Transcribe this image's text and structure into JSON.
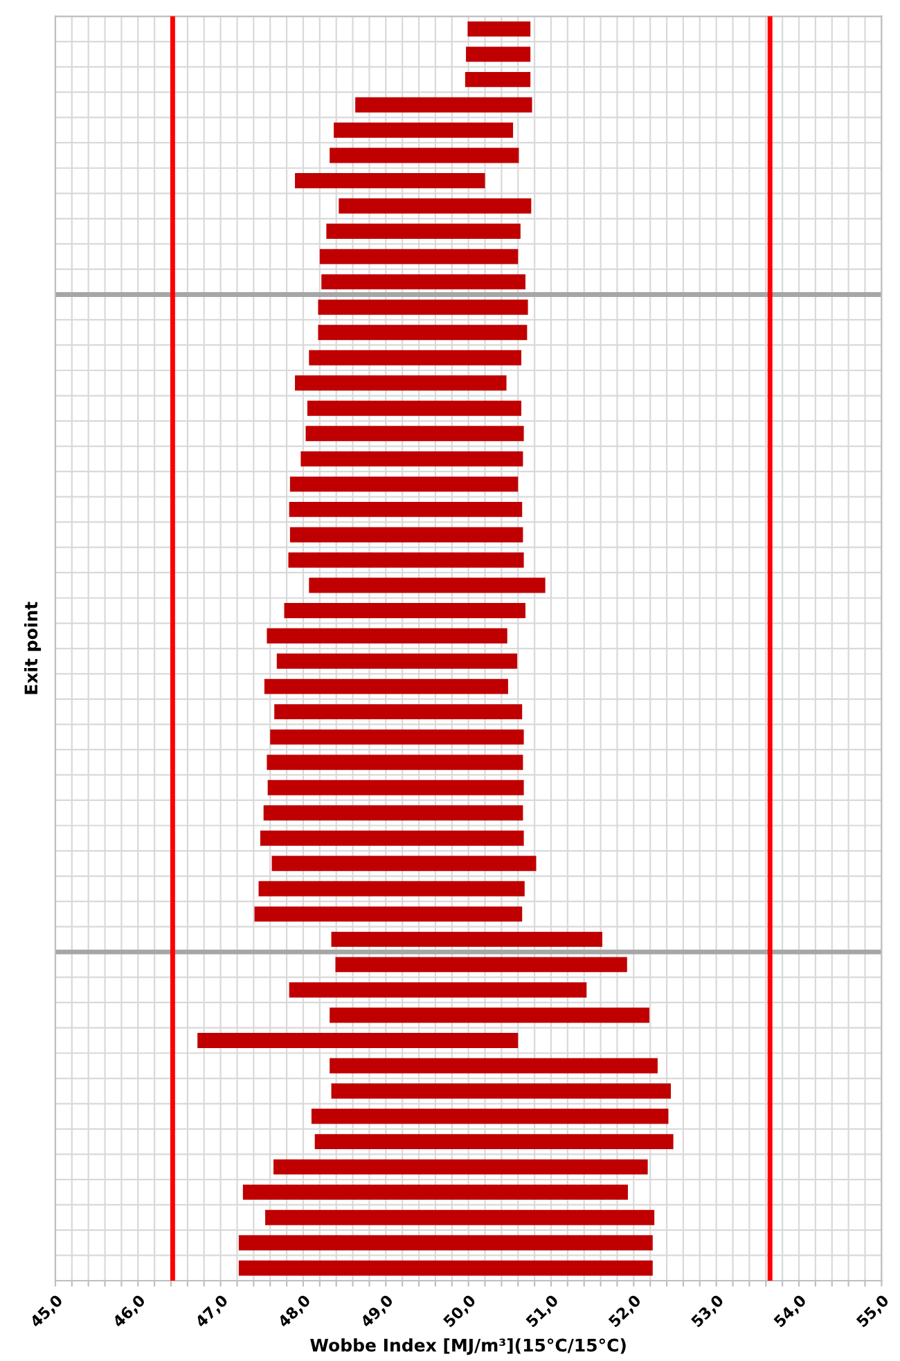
{
  "chart_data": {
    "type": "bar",
    "orientation": "horizontal",
    "xlabel": "Wobbe Index [MJ/m³](15°C/15°C)",
    "ylabel": "Exit point",
    "categories": [
      null,
      null,
      null,
      null,
      null,
      null,
      null,
      null,
      null,
      null,
      null,
      null,
      null,
      null,
      null,
      null,
      null,
      null,
      null,
      null,
      null,
      null,
      null,
      null,
      null,
      null,
      null,
      null,
      null,
      null,
      null,
      null,
      null,
      null,
      null,
      null,
      null,
      null,
      null,
      null,
      null,
      null,
      null,
      null,
      null,
      null,
      null,
      null,
      null,
      null
    ],
    "base": [
      49.99,
      49.97,
      49.96,
      48.63,
      48.37,
      48.32,
      47.9,
      48.43,
      48.28,
      48.2,
      48.22,
      48.18,
      48.18,
      48.07,
      47.9,
      48.05,
      48.03,
      47.97,
      47.84,
      47.83,
      47.84,
      47.82,
      48.07,
      47.77,
      47.56,
      47.68,
      47.53,
      47.65,
      47.6,
      47.56,
      47.57,
      47.52,
      47.48,
      47.62,
      47.46,
      47.41,
      48.34,
      48.39,
      47.83,
      48.32,
      46.72,
      48.32,
      48.34,
      48.1,
      48.14,
      47.64,
      47.27,
      47.54,
      47.22,
      47.22
    ],
    "values": [
      0.76,
      0.78,
      0.79,
      2.14,
      2.17,
      2.29,
      2.3,
      2.33,
      2.35,
      2.4,
      2.47,
      2.54,
      2.53,
      2.57,
      2.56,
      2.59,
      2.64,
      2.69,
      2.76,
      2.82,
      2.82,
      2.85,
      2.86,
      2.92,
      2.91,
      2.91,
      2.95,
      3.0,
      3.07,
      3.1,
      3.1,
      3.14,
      3.19,
      3.2,
      3.22,
      3.24,
      3.28,
      3.53,
      3.6,
      3.87,
      3.88,
      3.97,
      4.11,
      4.32,
      4.34,
      4.53,
      4.66,
      4.71,
      5.01,
      5.01
    ],
    "color": "#c00000",
    "xlim": [
      45,
      55
    ],
    "xticks": [
      {
        "value": 45,
        "label": "45,0"
      },
      {
        "value": 45.2,
        "label": null
      },
      {
        "value": 45.4,
        "label": null
      },
      {
        "value": 45.6,
        "label": null
      },
      {
        "value": 45.8,
        "label": null
      },
      {
        "value": 46,
        "label": "46,0"
      },
      {
        "value": 46.2,
        "label": null
      },
      {
        "value": 46.4,
        "label": null
      },
      {
        "value": 46.6,
        "label": null
      },
      {
        "value": 46.8,
        "label": null
      },
      {
        "value": 47,
        "label": "47,0"
      },
      {
        "value": 47.2,
        "label": null
      },
      {
        "value": 47.4,
        "label": null
      },
      {
        "value": 47.6,
        "label": null
      },
      {
        "value": 47.8,
        "label": null
      },
      {
        "value": 48,
        "label": "48,0"
      },
      {
        "value": 48.2,
        "label": null
      },
      {
        "value": 48.4,
        "label": null
      },
      {
        "value": 48.6,
        "label": null
      },
      {
        "value": 48.8,
        "label": null
      },
      {
        "value": 49,
        "label": "49,0"
      },
      {
        "value": 49.2,
        "label": null
      },
      {
        "value": 49.4,
        "label": null
      },
      {
        "value": 49.6,
        "label": null
      },
      {
        "value": 49.8,
        "label": null
      },
      {
        "value": 50,
        "label": "50,0"
      },
      {
        "value": 50.2,
        "label": null
      },
      {
        "value": 50.4,
        "label": null
      },
      {
        "value": 50.6,
        "label": null
      },
      {
        "value": 50.8,
        "label": null
      },
      {
        "value": 51,
        "label": "51,0"
      },
      {
        "value": 51.2,
        "label": null
      },
      {
        "value": 51.4,
        "label": null
      },
      {
        "value": 51.6,
        "label": null
      },
      {
        "value": 51.8,
        "label": null
      },
      {
        "value": 52,
        "label": "52,0"
      },
      {
        "value": 52.2,
        "label": null
      },
      {
        "value": 52.4,
        "label": null
      },
      {
        "value": 52.6,
        "label": null
      },
      {
        "value": 52.8,
        "label": null
      },
      {
        "value": 53,
        "label": "53,0"
      },
      {
        "value": 53.2,
        "label": null
      },
      {
        "value": 53.4,
        "label": null
      },
      {
        "value": 53.6,
        "label": null
      },
      {
        "value": 53.8,
        "label": null
      },
      {
        "value": 54,
        "label": "54,0"
      },
      {
        "value": 54.2,
        "label": null
      },
      {
        "value": 54.4,
        "label": null
      },
      {
        "value": 54.6,
        "label": null
      },
      {
        "value": 54.8,
        "label": null
      },
      {
        "value": 55,
        "label": "55,0"
      }
    ],
    "grid": true,
    "ref_lines": [
      {
        "axis": "x",
        "value": 46.42,
        "color": "#ff0000"
      },
      {
        "axis": "x",
        "value": 53.65,
        "color": "#ff0000"
      }
    ]
  }
}
